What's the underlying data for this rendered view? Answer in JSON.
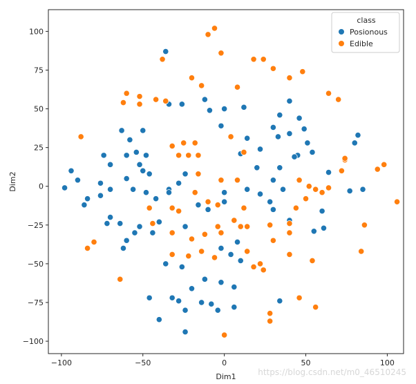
{
  "chart_data": {
    "type": "scatter",
    "xlabel": "Dim1",
    "ylabel": "Dim2",
    "xlim": [
      -108,
      110
    ],
    "ylim": [
      -108,
      114
    ],
    "xticks": [
      -100,
      -50,
      0,
      50,
      100
    ],
    "yticks": [
      -100,
      -75,
      -50,
      -25,
      0,
      25,
      50,
      75,
      100
    ],
    "grid": false,
    "legend": {
      "title": "class",
      "placement": "top-right"
    },
    "series": [
      {
        "name": "Posionous",
        "color": "#1f77b4",
        "points": [
          [
            -36,
            87
          ],
          [
            -34,
            53
          ],
          [
            -26,
            53
          ],
          [
            -12,
            56
          ],
          [
            -9,
            49
          ],
          [
            -2,
            39
          ],
          [
            0,
            50
          ],
          [
            12,
            51
          ],
          [
            14,
            31
          ],
          [
            10,
            21
          ],
          [
            22,
            24
          ],
          [
            30,
            38
          ],
          [
            34,
            46
          ],
          [
            40,
            55
          ],
          [
            33,
            32
          ],
          [
            40,
            34
          ],
          [
            46,
            44
          ],
          [
            49,
            37
          ],
          [
            51,
            28
          ],
          [
            45,
            20
          ],
          [
            43,
            19
          ],
          [
            54,
            22
          ],
          [
            64,
            9
          ],
          [
            82,
            33
          ],
          [
            80,
            28
          ],
          [
            85,
            -2
          ],
          [
            77,
            -3
          ],
          [
            60,
            -16
          ],
          [
            61,
            -27
          ],
          [
            40,
            -22
          ],
          [
            55,
            -29
          ],
          [
            30,
            -15
          ],
          [
            30,
            4
          ],
          [
            36,
            -2
          ],
          [
            28,
            -10
          ],
          [
            14,
            -2
          ],
          [
            22,
            -5
          ],
          [
            20,
            12
          ],
          [
            34,
            12
          ],
          [
            0,
            -4
          ],
          [
            0,
            -10
          ],
          [
            -10,
            -15
          ],
          [
            -16,
            -12
          ],
          [
            -10,
            -15
          ],
          [
            -24,
            8
          ],
          [
            -28,
            2
          ],
          [
            -34,
            -2
          ],
          [
            -34,
            -4
          ],
          [
            -24,
            -26
          ],
          [
            -40,
            -23
          ],
          [
            -44,
            -30
          ],
          [
            -52,
            -26
          ],
          [
            -55,
            -30
          ],
          [
            -60,
            -35
          ],
          [
            -62,
            -40
          ],
          [
            -64,
            -24
          ],
          [
            -70,
            -20
          ],
          [
            -72,
            -24
          ],
          [
            -76,
            -6
          ],
          [
            -84,
            -8
          ],
          [
            -86,
            -12
          ],
          [
            -76,
            2
          ],
          [
            -70,
            -2
          ],
          [
            -90,
            4
          ],
          [
            -98,
            -1
          ],
          [
            -94,
            10
          ],
          [
            -74,
            20
          ],
          [
            -70,
            14
          ],
          [
            -60,
            20
          ],
          [
            -52,
            14
          ],
          [
            -50,
            36
          ],
          [
            -58,
            30
          ],
          [
            -63,
            36
          ],
          [
            -60,
            5
          ],
          [
            -56,
            -2
          ],
          [
            -48,
            -4
          ],
          [
            -42,
            -8
          ],
          [
            -46,
            8
          ],
          [
            -50,
            10
          ],
          [
            -54,
            22
          ],
          [
            -48,
            20
          ],
          [
            -2,
            -40
          ],
          [
            4,
            -44
          ],
          [
            10,
            -48
          ],
          [
            8,
            -36
          ],
          [
            -2,
            -62
          ],
          [
            6,
            -65
          ],
          [
            -12,
            -60
          ],
          [
            -20,
            -66
          ],
          [
            -8,
            -76
          ],
          [
            -14,
            -75
          ],
          [
            -4,
            -80
          ],
          [
            6,
            -78
          ],
          [
            -28,
            -74
          ],
          [
            -32,
            -72
          ],
          [
            -36,
            -50
          ],
          [
            -26,
            -52
          ],
          [
            -46,
            -72
          ],
          [
            -40,
            -86
          ],
          [
            -24,
            -94
          ],
          [
            -24,
            -80
          ],
          [
            34,
            -74
          ]
        ]
      },
      {
        "name": "Edible",
        "color": "#ff7f0e",
        "points": [
          [
            -10,
            98
          ],
          [
            -6,
            102
          ],
          [
            -2,
            86
          ],
          [
            -38,
            82
          ],
          [
            -20,
            70
          ],
          [
            -14,
            65
          ],
          [
            8,
            64
          ],
          [
            18,
            82
          ],
          [
            24,
            82
          ],
          [
            30,
            76
          ],
          [
            40,
            70
          ],
          [
            48,
            74
          ],
          [
            -60,
            60
          ],
          [
            -52,
            58
          ],
          [
            -42,
            56
          ],
          [
            -62,
            54
          ],
          [
            -52,
            53
          ],
          [
            -36,
            55
          ],
          [
            -32,
            26
          ],
          [
            -25,
            28
          ],
          [
            -18,
            28
          ],
          [
            -22,
            20
          ],
          [
            -28,
            20
          ],
          [
            -16,
            20
          ],
          [
            4,
            32
          ],
          [
            12,
            22
          ],
          [
            8,
            4
          ],
          [
            -2,
            4
          ],
          [
            -16,
            8
          ],
          [
            -18,
            -4
          ],
          [
            -10,
            -10
          ],
          [
            -4,
            -12
          ],
          [
            12,
            -14
          ],
          [
            14,
            -26
          ],
          [
            6,
            -22
          ],
          [
            28,
            -25
          ],
          [
            40,
            -30
          ],
          [
            30,
            -35
          ],
          [
            10,
            -26
          ],
          [
            -4,
            -26
          ],
          [
            -12,
            -31
          ],
          [
            -2,
            -30
          ],
          [
            -20,
            -34
          ],
          [
            -32,
            -30
          ],
          [
            -22,
            -45
          ],
          [
            -32,
            -44
          ],
          [
            -14,
            -42
          ],
          [
            -6,
            -46
          ],
          [
            14,
            -42
          ],
          [
            18,
            -52
          ],
          [
            22,
            -50
          ],
          [
            24,
            -54
          ],
          [
            40,
            -44
          ],
          [
            54,
            -48
          ],
          [
            46,
            -72
          ],
          [
            28,
            -82
          ],
          [
            28,
            -87
          ],
          [
            0,
            -96
          ],
          [
            56,
            -78
          ],
          [
            46,
            4
          ],
          [
            52,
            0
          ],
          [
            56,
            -2
          ],
          [
            64,
            -1
          ],
          [
            60,
            -4
          ],
          [
            50,
            -8
          ],
          [
            44,
            -14
          ],
          [
            40,
            -24
          ],
          [
            72,
            10
          ],
          [
            74,
            17
          ],
          [
            94,
            11
          ],
          [
            98,
            14
          ],
          [
            106,
            -10
          ],
          [
            86,
            -25
          ],
          [
            84,
            -42
          ],
          [
            -32,
            -14
          ],
          [
            -28,
            -16
          ],
          [
            -46,
            -14
          ],
          [
            -44,
            -24
          ],
          [
            -80,
            -36
          ],
          [
            -84,
            -40
          ],
          [
            -88,
            32
          ],
          [
            -64,
            -60
          ],
          [
            64,
            60
          ],
          [
            70,
            56
          ],
          [
            74,
            18
          ]
        ]
      }
    ]
  },
  "watermark": "https://blog.csdn.net/m0_46510245"
}
